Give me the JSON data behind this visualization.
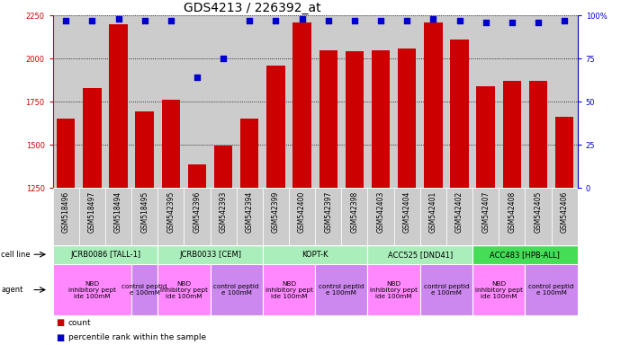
{
  "title": "GDS4213 / 226392_at",
  "sample_ids": [
    "GSM518496",
    "GSM518497",
    "GSM518494",
    "GSM518495",
    "GSM542395",
    "GSM542396",
    "GSM542393",
    "GSM542394",
    "GSM542399",
    "GSM542400",
    "GSM542397",
    "GSM542398",
    "GSM542403",
    "GSM542404",
    "GSM542401",
    "GSM542402",
    "GSM542407",
    "GSM542408",
    "GSM542405",
    "GSM542406"
  ],
  "counts": [
    1655,
    1830,
    2200,
    1695,
    1760,
    1385,
    1495,
    1650,
    1960,
    2210,
    2050,
    2045,
    2050,
    2060,
    2210,
    2110,
    1840,
    1870,
    1870,
    1665
  ],
  "percentiles": [
    97,
    97,
    98,
    97,
    97,
    64,
    75,
    97,
    97,
    98,
    97,
    97,
    97,
    97,
    98,
    97,
    96,
    96,
    96,
    97
  ],
  "ylim_left": [
    1250,
    2250
  ],
  "ylim_right": [
    0,
    100
  ],
  "yticks_left": [
    1250,
    1500,
    1750,
    2000,
    2250
  ],
  "yticks_right": [
    0,
    25,
    50,
    75,
    100
  ],
  "cell_line_groups": [
    {
      "label": "JCRB0086 [TALL-1]",
      "start": 0,
      "end": 4,
      "color": "#AAEEBB"
    },
    {
      "label": "JCRB0033 [CEM]",
      "start": 4,
      "end": 8,
      "color": "#AAEEBB"
    },
    {
      "label": "KOPT-K",
      "start": 8,
      "end": 12,
      "color": "#AAEEBB"
    },
    {
      "label": "ACC525 [DND41]",
      "start": 12,
      "end": 16,
      "color": "#AAEEBB"
    },
    {
      "label": "ACC483 [HPB-ALL]",
      "start": 16,
      "end": 20,
      "color": "#44DD55"
    }
  ],
  "agent_groups": [
    {
      "label": "NBD\ninhibitory pept\nide 100mM",
      "start": 0,
      "end": 3,
      "color": "#FF88FF"
    },
    {
      "label": "control peptid\ne 100mM",
      "start": 3,
      "end": 4,
      "color": "#CC88EE"
    },
    {
      "label": "NBD\ninhibitory pept\nide 100mM",
      "start": 4,
      "end": 6,
      "color": "#FF88FF"
    },
    {
      "label": "control peptid\ne 100mM",
      "start": 6,
      "end": 8,
      "color": "#CC88EE"
    },
    {
      "label": "NBD\ninhibitory pept\nide 100mM",
      "start": 8,
      "end": 10,
      "color": "#FF88FF"
    },
    {
      "label": "control peptid\ne 100mM",
      "start": 10,
      "end": 12,
      "color": "#CC88EE"
    },
    {
      "label": "NBD\ninhibitory pept\nide 100mM",
      "start": 12,
      "end": 14,
      "color": "#FF88FF"
    },
    {
      "label": "control peptid\ne 100mM",
      "start": 14,
      "end": 16,
      "color": "#CC88EE"
    },
    {
      "label": "NBD\ninhibitory pept\nide 100mM",
      "start": 16,
      "end": 18,
      "color": "#FF88FF"
    },
    {
      "label": "control peptid\ne 100mM",
      "start": 18,
      "end": 20,
      "color": "#CC88EE"
    }
  ],
  "bar_color": "#CC0000",
  "dot_color": "#0000CC",
  "bg_color": "#CCCCCC",
  "left_axis_color": "#CC0000",
  "right_axis_color": "#0000CC",
  "title_fontsize": 10,
  "tick_fontsize": 6,
  "label_fontsize": 7
}
